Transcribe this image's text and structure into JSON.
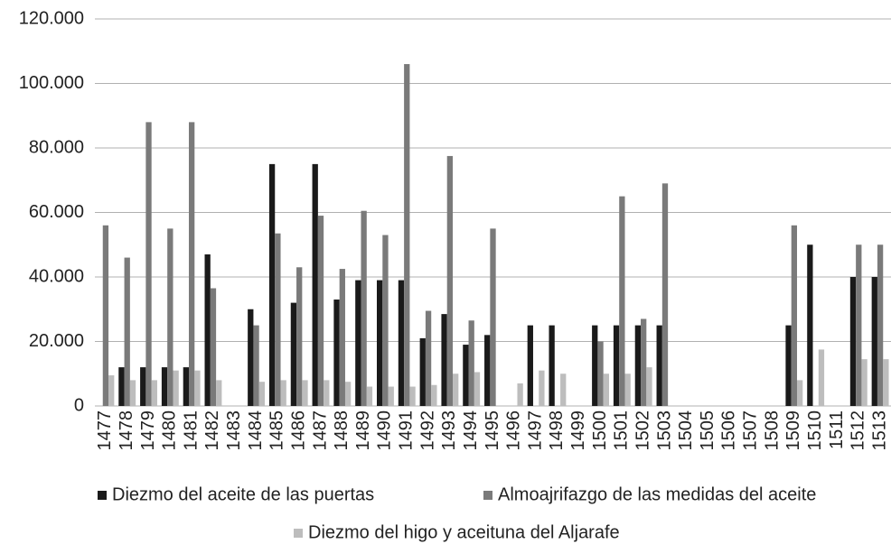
{
  "chart_data": {
    "type": "bar",
    "categories": [
      "1477",
      "1478",
      "1479",
      "1480",
      "1481",
      "1482",
      "1483",
      "1484",
      "1485",
      "1486",
      "1487",
      "1488",
      "1489",
      "1490",
      "1491",
      "1492",
      "1493",
      "1494",
      "1495",
      "1496",
      "1497",
      "1498",
      "1499",
      "1500",
      "1501",
      "1502",
      "1503",
      "1504",
      "1505",
      "1506",
      "1507",
      "1508",
      "1509",
      "1510",
      "1511",
      "1512",
      "1513"
    ],
    "series": [
      {
        "name": "Diezmo del aceite de las puertas",
        "color": "#1a1a1a",
        "values": [
          null,
          12000,
          12000,
          12000,
          12000,
          47000,
          null,
          30000,
          75000,
          32000,
          75000,
          33000,
          39000,
          39000,
          39000,
          21000,
          28500,
          19000,
          22000,
          null,
          25000,
          25000,
          null,
          25000,
          25000,
          25000,
          25000,
          null,
          null,
          null,
          null,
          null,
          25000,
          50000,
          null,
          40000,
          40000
        ]
      },
      {
        "name": "Almoajrifazgo de las medidas del aceite",
        "color": "#7a7a7a",
        "values": [
          56000,
          46000,
          88000,
          55000,
          88000,
          36500,
          null,
          25000,
          53500,
          43000,
          59000,
          42500,
          60500,
          53000,
          106000,
          29500,
          77500,
          26500,
          55000,
          null,
          null,
          null,
          null,
          20000,
          65000,
          27000,
          69000,
          null,
          null,
          null,
          null,
          null,
          56000,
          null,
          null,
          50000,
          50000
        ]
      },
      {
        "name": "Diezmo del higo y aceituna del Aljarafe",
        "color": "#bdbdbd",
        "values": [
          9500,
          8000,
          8000,
          11000,
          11000,
          8000,
          null,
          7500,
          8000,
          8000,
          8000,
          7500,
          6000,
          6000,
          6000,
          6500,
          10000,
          10500,
          null,
          7000,
          11000,
          10000,
          null,
          10000,
          10000,
          12000,
          null,
          null,
          null,
          null,
          null,
          null,
          8000,
          17500,
          null,
          14500,
          14500
        ]
      }
    ],
    "ylim": [
      0,
      120000
    ],
    "yticks": [
      0,
      {
        "value": 20000,
        "label": "20.000"
      },
      {
        "value": 40000,
        "label": "40.000"
      },
      {
        "value": 60000,
        "label": "60.000"
      },
      {
        "value": 80000,
        "label": "80.000"
      },
      {
        "value": 100000,
        "label": "100.000"
      },
      {
        "value": 120000,
        "label": "120.000"
      }
    ],
    "grid": true
  }
}
